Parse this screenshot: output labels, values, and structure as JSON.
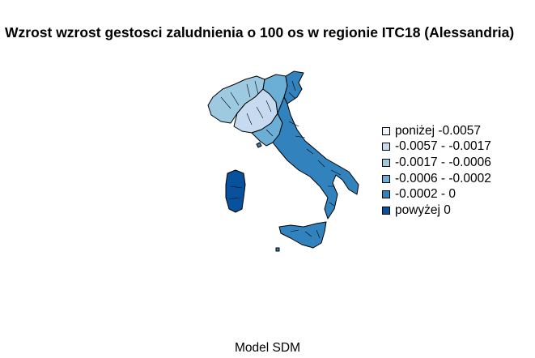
{
  "title": "Wzrost wzrost gestosci zaludnienia o 100 os w regionie ITC18 (Alessandria)",
  "caption": "Model SDM",
  "legend": {
    "items": [
      {
        "label": "poniżej -0.0057",
        "color": "#eff3ff"
      },
      {
        "label": "-0.0057 - -0.0017",
        "color": "#c6dbef"
      },
      {
        "label": "-0.0017 - -0.0006",
        "color": "#9ecae1"
      },
      {
        "label": "-0.0006 - -0.0002",
        "color": "#6baed6"
      },
      {
        "label": "-0.0002 - 0",
        "color": "#3182bd"
      },
      {
        "label": "powyżej 0",
        "color": "#08519c"
      }
    ]
  },
  "map_regions": {
    "northwest_alps": "#9ecae1",
    "piedmont_lombardy": "#c6dbef",
    "north_central": "#6baed6",
    "northeast": "#3182bd",
    "central_south": "#3182bd",
    "sicily": "#3182bd",
    "sardinia": "#08519c",
    "tuscany_coast": "#6baed6"
  }
}
